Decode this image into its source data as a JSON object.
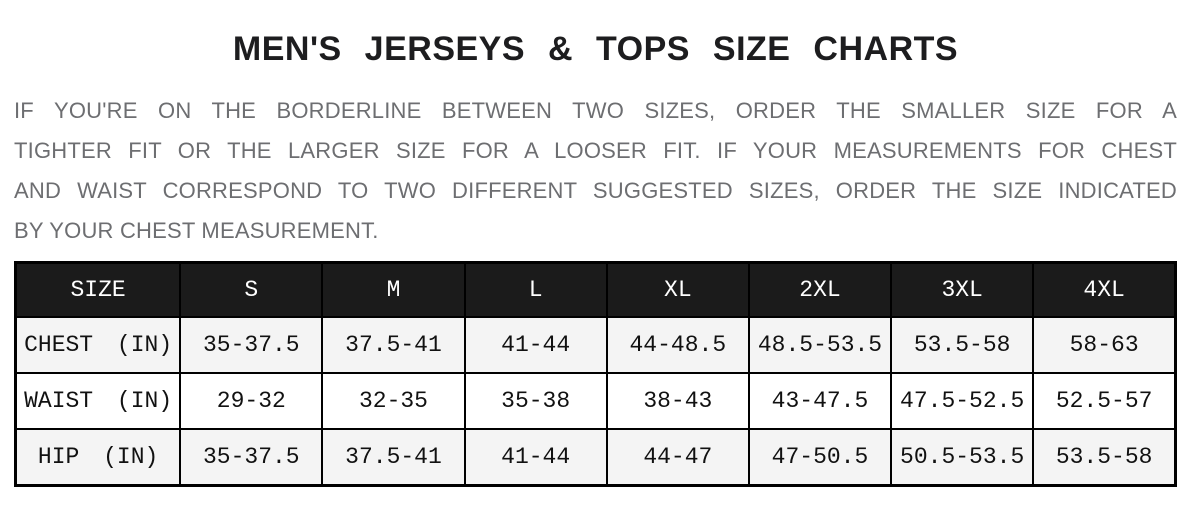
{
  "title": "MEN'S JERSEYS & TOPS SIZE CHARTS",
  "intro": {
    "lines": [
      "IF YOU'RE ON THE BORDERLINE BETWEEN TWO SIZES, ORDER THE SMALLER SIZE FOR A",
      "TIGHTER FIT OR THE LARGER SIZE FOR A LOOSER FIT. IF YOUR MEASUREMENTS FOR CHEST",
      "AND WAIST CORRESPOND TO TWO DIFFERENT SUGGESTED SIZES, ORDER THE SIZE INDICATED",
      "BY YOUR CHEST MEASUREMENT."
    ]
  },
  "size_chart": {
    "columns": [
      "SIZE",
      "S",
      "M",
      "L",
      "XL",
      "2XL",
      "3XL",
      "4XL"
    ],
    "rows": [
      {
        "label": "CHEST (IN)",
        "values": [
          "35-37.5",
          "37.5-41",
          "41-44",
          "44-48.5",
          "48.5-53.5",
          "53.5-58",
          "58-63"
        ]
      },
      {
        "label": "WAIST (IN)",
        "values": [
          "29-32",
          "32-35",
          "35-38",
          "38-43",
          "43-47.5",
          "47.5-52.5",
          "52.5-57"
        ]
      },
      {
        "label": "HIP (IN)",
        "values": [
          "35-37.5",
          "37.5-41",
          "41-44",
          "44-47",
          "47-50.5",
          "50.5-53.5",
          "53.5-58"
        ]
      }
    ]
  },
  "colors": {
    "header_bg": "#1b1b1b",
    "header_text": "#ffffff",
    "row_stripe": "#f4f4f4",
    "border": "#000000",
    "title_text": "#1d1d1f",
    "intro_text": "#6d6e71"
  }
}
